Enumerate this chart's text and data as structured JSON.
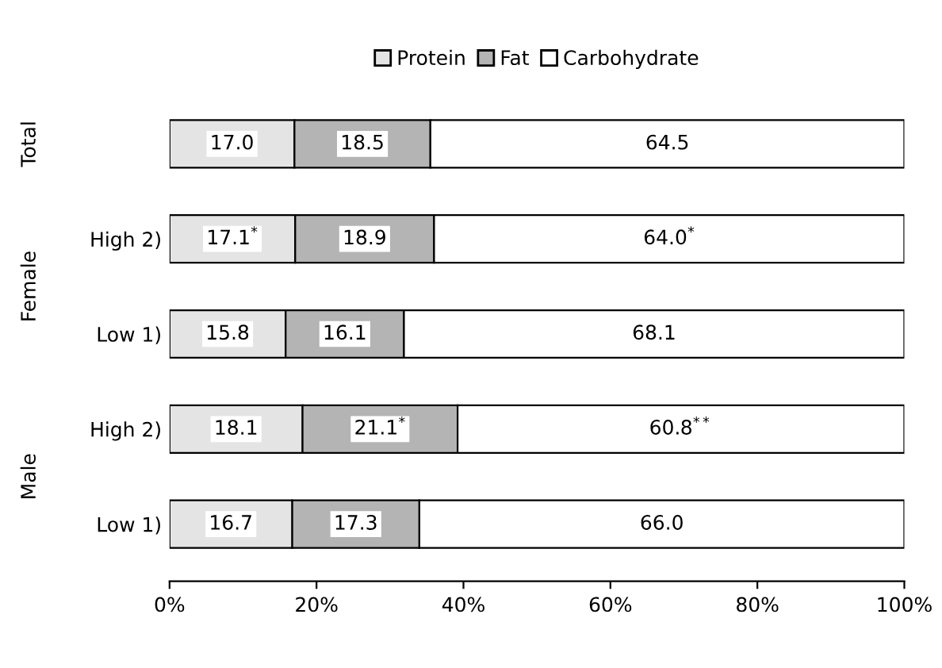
{
  "chart_data": {
    "type": "bar",
    "orientation": "horizontal",
    "stacked": true,
    "categories": [
      null,
      "High 2)",
      "Low 1)",
      "High 2)",
      "Low 1)"
    ],
    "series": [
      {
        "name": "Protein",
        "color": "#e4e4e4",
        "values": [
          17.0,
          17.1,
          15.8,
          18.1,
          16.7
        ],
        "value_labels": [
          "17.0",
          "17.1$^{*}$",
          "15.8",
          "18.1",
          "16.7"
        ]
      },
      {
        "name": "Fat",
        "color": "#b4b4b4",
        "values": [
          18.5,
          18.9,
          16.1,
          21.1,
          17.3
        ],
        "value_labels": [
          "18.5",
          "18.9",
          "16.1",
          "21.1$^{*}$",
          "17.3"
        ]
      },
      {
        "name": "Carbohydrate",
        "color": "#ffffff",
        "values": [
          64.5,
          64.0,
          68.1,
          60.8,
          66.0
        ],
        "value_labels": [
          "64.5",
          "64.0$^{*}$",
          "68.1",
          "60.8$^{**}$",
          "66.0"
        ]
      }
    ],
    "annotations": [
      "Total",
      "Female",
      "Male"
    ],
    "xlim": [
      0,
      100
    ],
    "xticks": [
      {
        "value": 0,
        "label": "0%"
      },
      {
        "value": 20,
        "label": "20%"
      },
      {
        "value": 40,
        "label": "40%"
      },
      {
        "value": 60,
        "label": "60%"
      },
      {
        "value": 80,
        "label": "80%"
      },
      {
        "value": 100,
        "label": "100%"
      }
    ],
    "legend": "top",
    "grid": false
  }
}
